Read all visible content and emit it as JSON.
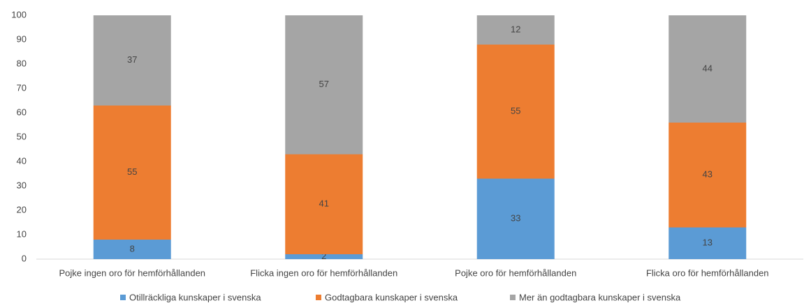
{
  "chart_data": {
    "type": "stacked_bar",
    "categories": [
      "Pojke ingen oro för hemförhållanden",
      "Flicka ingen oro för hemförhållanden",
      "Pojke oro för hemförhållanden",
      "Flicka oro för hemförhållanden"
    ],
    "series": [
      {
        "name": "Otillräckliga kunskaper i svenska",
        "color": "#5b9bd5",
        "values": [
          8,
          2,
          33,
          13
        ]
      },
      {
        "name": "Godtagbara kunskaper i svenska",
        "color": "#ed7d31",
        "values": [
          55,
          41,
          55,
          43
        ]
      },
      {
        "name": "Mer än godtagbara kunskaper i svenska",
        "color": "#a5a5a5",
        "values": [
          37,
          57,
          12,
          44
        ]
      }
    ],
    "ylim": [
      0,
      100
    ],
    "yticks": [
      0,
      10,
      20,
      30,
      40,
      50,
      60,
      70,
      80,
      90,
      100
    ],
    "grid": false,
    "legend": "bottom"
  }
}
